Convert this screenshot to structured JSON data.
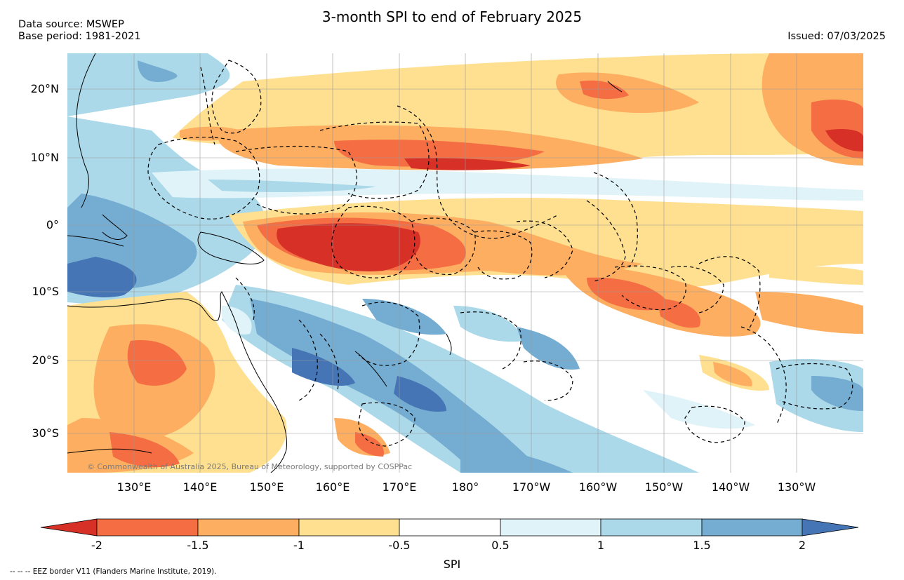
{
  "title": "3-month SPI to end of February 2025",
  "data_source": "Data source: MSWEP",
  "base_period": "Base period: 1981-2021",
  "issued": "Issued: 07/03/2025",
  "credit": "© Commonwealth of Australia 2025, Bureau of Meteorology, supported by COSPPac",
  "eez_note": "-- -- -- EEZ border V11 (Flanders Marine Institute, 2019).",
  "lat_labels": [
    "20°N",
    "10°N",
    "0°",
    "10°S",
    "20°S",
    "30°S"
  ],
  "lon_labels": [
    "130°E",
    "140°E",
    "150°E",
    "160°E",
    "170°E",
    "180°",
    "170°W",
    "160°W",
    "150°W",
    "140°W",
    "130°W"
  ],
  "colorbar": {
    "label": "SPI",
    "ticks": [
      "-2",
      "-1.5",
      "-1",
      "-0.5",
      "0.5",
      "1",
      "1.5",
      "2"
    ],
    "colors": [
      "#d73027",
      "#f46d43",
      "#fdae61",
      "#fee090",
      "#ffffff",
      "#e0f3f8",
      "#abd9e9",
      "#74add1",
      "#4575b4"
    ]
  },
  "colors": {
    "dry_extreme": "#d73027",
    "dry_severe": "#f46d43",
    "dry_moderate": "#fdae61",
    "dry_mild": "#fee090",
    "wet_mild": "#e0f3f8",
    "wet_moderate": "#abd9e9",
    "wet_severe": "#74add1",
    "wet_extreme": "#4575b4"
  }
}
